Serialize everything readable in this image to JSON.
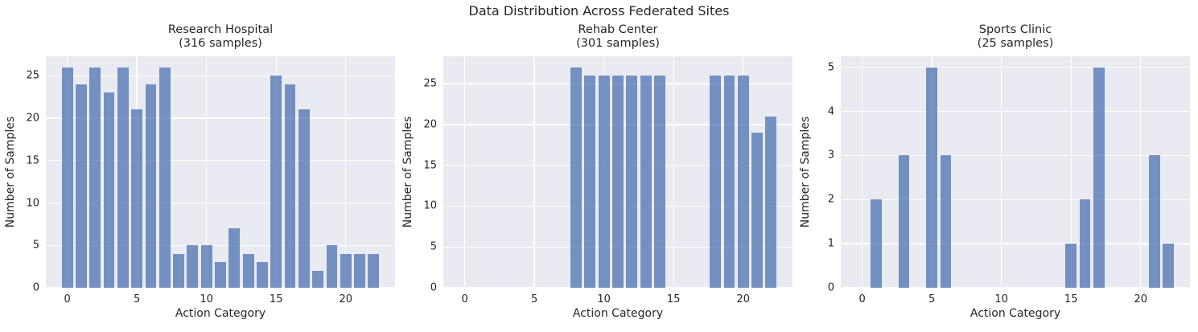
{
  "figure": {
    "title": "Data Distribution Across Federated Sites",
    "background_color": "#ffffff",
    "plot_background_color": "#eaeaf2",
    "grid_color": "#ffffff",
    "bar_color": "#4c72b0",
    "bar_alpha": 0.75,
    "text_color": "#262626"
  },
  "chart_data": [
    {
      "type": "bar",
      "title": "Research Hospital",
      "subtitle": "(316 samples)",
      "total_samples": 316,
      "xlabel": "Action Category",
      "ylabel": "Number of Samples",
      "categories": [
        0,
        1,
        2,
        3,
        4,
        5,
        6,
        7,
        8,
        9,
        10,
        11,
        12,
        13,
        14,
        15,
        16,
        17,
        18,
        19,
        20,
        21,
        22
      ],
      "values": [
        26,
        24,
        26,
        23,
        26,
        21,
        24,
        26,
        4,
        5,
        5,
        3,
        7,
        4,
        3,
        25,
        24,
        21,
        2,
        5,
        4,
        4,
        4
      ],
      "xticks": [
        0,
        5,
        10,
        15,
        20
      ],
      "yticks": [
        0,
        5,
        10,
        15,
        20,
        25
      ],
      "xlim": [
        -1.54,
        23.54
      ],
      "ylim": [
        0,
        27.3
      ],
      "grid": true,
      "legend": null
    },
    {
      "type": "bar",
      "title": "Rehab Center",
      "subtitle": "(301 samples)",
      "total_samples": 301,
      "xlabel": "Action Category",
      "ylabel": "Number of Samples",
      "categories": [
        0,
        1,
        2,
        3,
        4,
        5,
        6,
        7,
        8,
        9,
        10,
        11,
        12,
        13,
        14,
        15,
        16,
        17,
        18,
        19,
        20,
        21,
        22
      ],
      "values": [
        0,
        0,
        0,
        0,
        0,
        0,
        0,
        0,
        27,
        26,
        26,
        26,
        26,
        26,
        26,
        0,
        0,
        0,
        26,
        26,
        26,
        19,
        21
      ],
      "xticks": [
        0,
        5,
        10,
        15,
        20
      ],
      "yticks": [
        0,
        5,
        10,
        15,
        20,
        25
      ],
      "xlim": [
        -1.54,
        23.54
      ],
      "ylim": [
        0,
        28.35
      ],
      "grid": true,
      "legend": null
    },
    {
      "type": "bar",
      "title": "Sports Clinic",
      "subtitle": "(25 samples)",
      "total_samples": 25,
      "xlabel": "Action Category",
      "ylabel": "Number of Samples",
      "categories": [
        0,
        1,
        2,
        3,
        4,
        5,
        6,
        7,
        8,
        9,
        10,
        11,
        12,
        13,
        14,
        15,
        16,
        17,
        18,
        19,
        20,
        21,
        22
      ],
      "values": [
        0,
        2,
        0,
        3,
        0,
        5,
        3,
        0,
        0,
        0,
        0,
        0,
        0,
        0,
        0,
        1,
        2,
        5,
        0,
        0,
        0,
        3,
        1
      ],
      "xticks": [
        0,
        5,
        10,
        15,
        20
      ],
      "yticks": [
        0,
        1,
        2,
        3,
        4,
        5
      ],
      "xlim": [
        -1.54,
        23.54
      ],
      "ylim": [
        0,
        5.25
      ],
      "grid": true,
      "legend": null
    }
  ]
}
